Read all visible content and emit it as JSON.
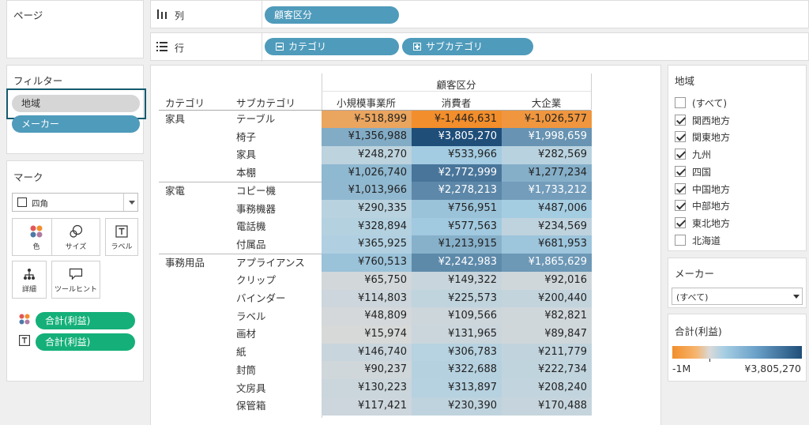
{
  "pages": {
    "title": "ページ"
  },
  "columns_shelf": {
    "label": "列",
    "pills": [
      "顧客区分"
    ]
  },
  "rows_shelf": {
    "label": "行",
    "pills": [
      "カテゴリ",
      "サブカテゴリ"
    ]
  },
  "filters": {
    "title": "フィルター",
    "items": [
      "地域",
      "メーカー"
    ]
  },
  "marks": {
    "title": "マーク",
    "mark_type": "四角",
    "buttons": [
      "色",
      "サイズ",
      "ラベル",
      "詳細",
      "ツールヒント"
    ],
    "fields": [
      "合計(利益)",
      "合計(利益)"
    ]
  },
  "table": {
    "column_group_header": "顧客区分",
    "row_header_category": "カテゴリ",
    "row_header_subcategory": "サブカテゴリ",
    "columns": [
      "小規模事業所",
      "消費者",
      "大企業"
    ],
    "rows": [
      {
        "category": "家具",
        "sub": "テーブル",
        "vals": [
          "¥-518,899",
          "¥-1,446,631",
          "¥-1,026,577"
        ],
        "nums": [
          -518899,
          -1446631,
          -1026577
        ]
      },
      {
        "category": "",
        "sub": "椅子",
        "vals": [
          "¥1,356,988",
          "¥3,805,270",
          "¥1,998,659"
        ],
        "nums": [
          1356988,
          3805270,
          1998659
        ]
      },
      {
        "category": "",
        "sub": "家具",
        "vals": [
          "¥248,270",
          "¥533,966",
          "¥282,569"
        ],
        "nums": [
          248270,
          533966,
          282569
        ]
      },
      {
        "category": "",
        "sub": "本棚",
        "vals": [
          "¥1,026,740",
          "¥2,772,999",
          "¥1,277,234"
        ],
        "nums": [
          1026740,
          2772999,
          1277234
        ]
      },
      {
        "category": "家電",
        "sub": "コピー機",
        "vals": [
          "¥1,013,966",
          "¥2,278,213",
          "¥1,733,212"
        ],
        "nums": [
          1013966,
          2278213,
          1733212
        ]
      },
      {
        "category": "",
        "sub": "事務機器",
        "vals": [
          "¥290,335",
          "¥756,951",
          "¥487,006"
        ],
        "nums": [
          290335,
          756951,
          487006
        ]
      },
      {
        "category": "",
        "sub": "電話機",
        "vals": [
          "¥328,894",
          "¥577,563",
          "¥234,569"
        ],
        "nums": [
          328894,
          577563,
          234569
        ]
      },
      {
        "category": "",
        "sub": "付属品",
        "vals": [
          "¥365,925",
          "¥1,213,915",
          "¥681,953"
        ],
        "nums": [
          365925,
          1213915,
          681953
        ]
      },
      {
        "category": "事務用品",
        "sub": "アプライアンス",
        "vals": [
          "¥760,513",
          "¥2,242,983",
          "¥1,865,629"
        ],
        "nums": [
          760513,
          2242983,
          1865629
        ]
      },
      {
        "category": "",
        "sub": "クリップ",
        "vals": [
          "¥65,750",
          "¥149,322",
          "¥92,016"
        ],
        "nums": [
          65750,
          149322,
          92016
        ]
      },
      {
        "category": "",
        "sub": "バインダー",
        "vals": [
          "¥114,803",
          "¥225,573",
          "¥200,440"
        ],
        "nums": [
          114803,
          225573,
          200440
        ]
      },
      {
        "category": "",
        "sub": "ラベル",
        "vals": [
          "¥48,809",
          "¥109,566",
          "¥82,821"
        ],
        "nums": [
          48809,
          109566,
          82821
        ]
      },
      {
        "category": "",
        "sub": "画材",
        "vals": [
          "¥15,974",
          "¥131,965",
          "¥89,847"
        ],
        "nums": [
          15974,
          131965,
          89847
        ]
      },
      {
        "category": "",
        "sub": "紙",
        "vals": [
          "¥146,740",
          "¥306,783",
          "¥211,779"
        ],
        "nums": [
          146740,
          306783,
          211779
        ]
      },
      {
        "category": "",
        "sub": "封筒",
        "vals": [
          "¥90,237",
          "¥322,688",
          "¥222,734"
        ],
        "nums": [
          90237,
          322688,
          222734
        ]
      },
      {
        "category": "",
        "sub": "文房具",
        "vals": [
          "¥130,223",
          "¥313,897",
          "¥208,240"
        ],
        "nums": [
          130223,
          313897,
          208240
        ]
      },
      {
        "category": "",
        "sub": "保管箱",
        "vals": [
          "¥117,421",
          "¥230,390",
          "¥170,488"
        ],
        "nums": [
          117421,
          230390,
          170488
        ]
      }
    ]
  },
  "region_filter": {
    "title": "地域",
    "options": [
      {
        "label": "(すべて)",
        "checked": false
      },
      {
        "label": "関西地方",
        "checked": true
      },
      {
        "label": "関東地方",
        "checked": true
      },
      {
        "label": "九州",
        "checked": true
      },
      {
        "label": "四国",
        "checked": true
      },
      {
        "label": "中国地方",
        "checked": true
      },
      {
        "label": "中部地方",
        "checked": true
      },
      {
        "label": "東北地方",
        "checked": true
      },
      {
        "label": "北海道",
        "checked": false
      }
    ]
  },
  "maker_filter": {
    "title": "メーカー",
    "selected": "(すべて)"
  },
  "legend": {
    "title": "合計(利益)",
    "min_label": "-1M",
    "max_label": "¥3,805,270",
    "min_value": -1446631,
    "max_value": 3805270,
    "colors": {
      "neg": "#f28e2b",
      "mid": "#d9d9d9",
      "pos_light": "#a6cee3",
      "pos_dark": "#1f4e79"
    }
  }
}
